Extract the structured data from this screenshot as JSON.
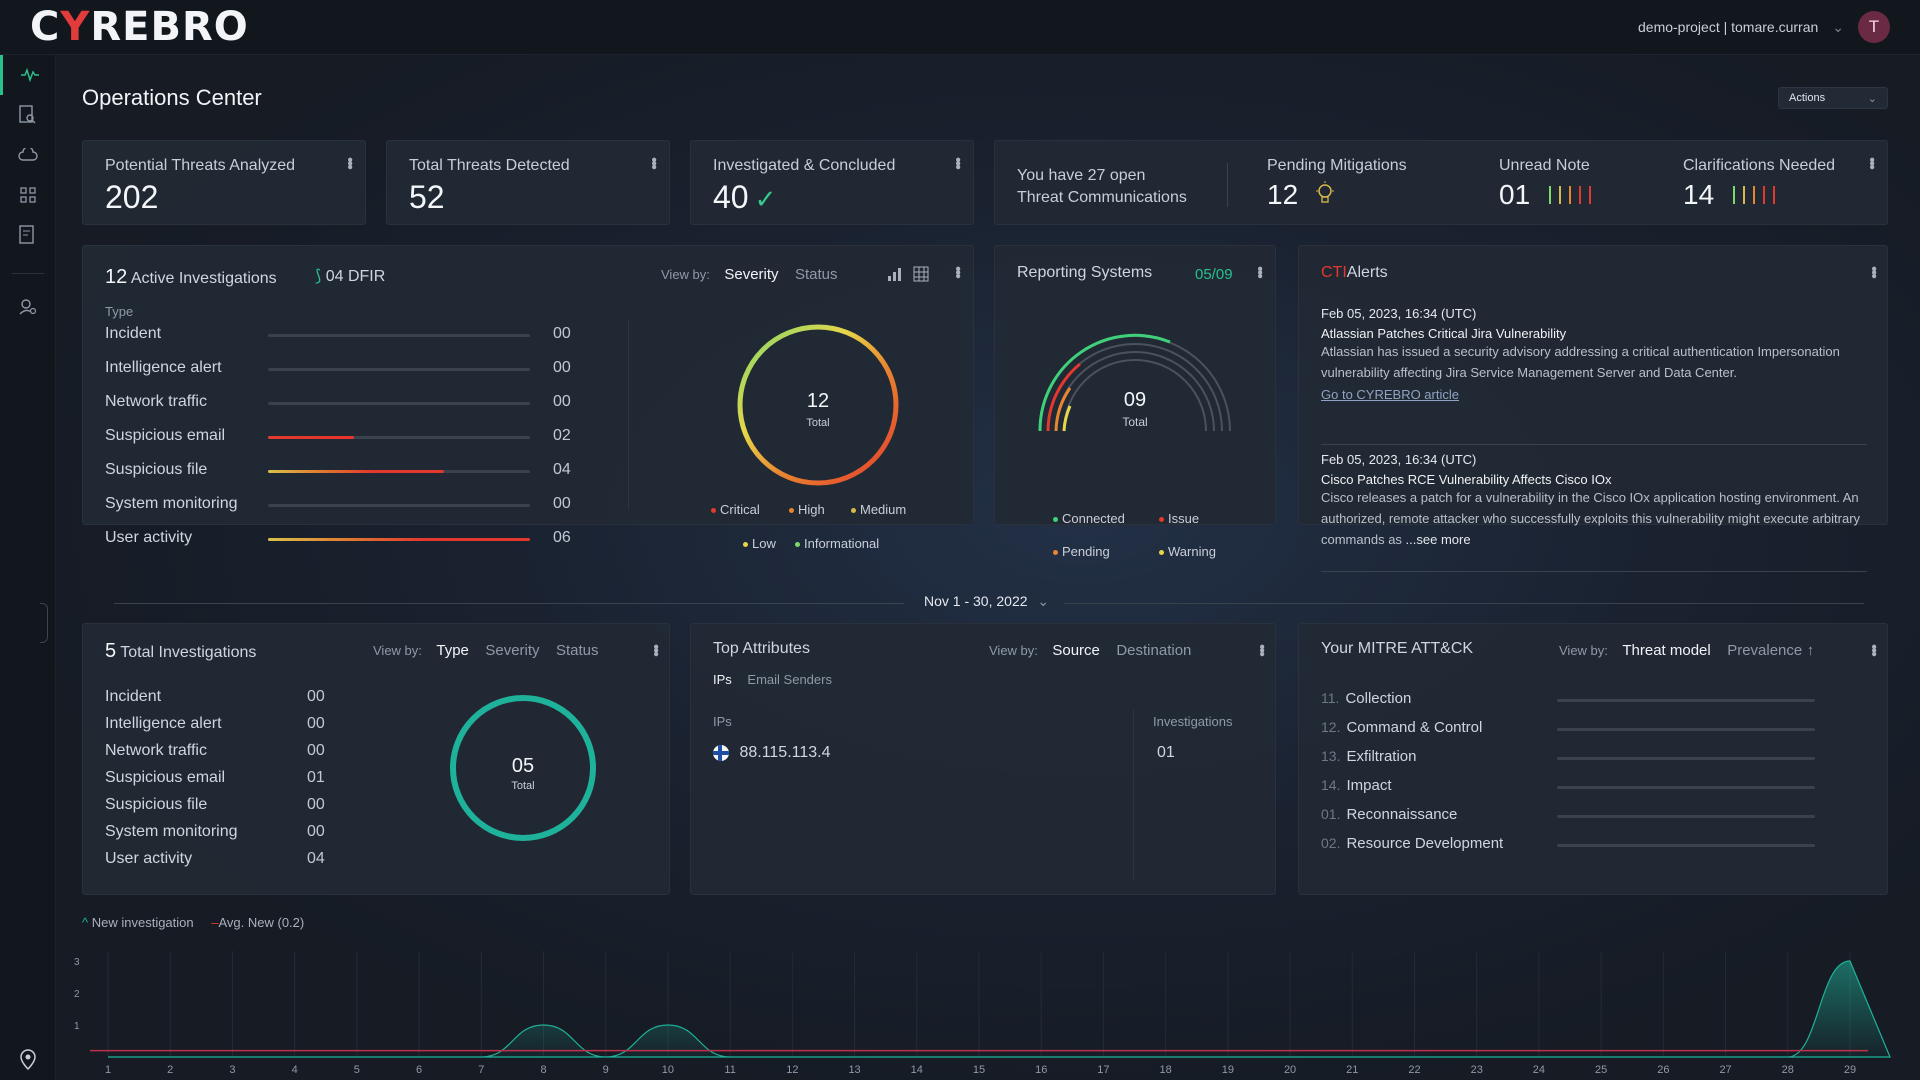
{
  "header": {
    "logo_prefix": "C",
    "logo_accent": "Y",
    "logo_suffix": "REBRO",
    "account": "demo-project | tomare.curran",
    "avatar_initial": "T"
  },
  "sidebar": {
    "items": [
      "activity-icon",
      "report-search-icon",
      "cloud-icon",
      "grid-icon",
      "file-search-icon",
      "user-search-icon",
      "location-pin-icon"
    ]
  },
  "page": {
    "title": "Operations Center",
    "actions_label": "Actions"
  },
  "stats": [
    {
      "label": "Potential Threats Analyzed",
      "value": "202"
    },
    {
      "label": "Total Threats Detected",
      "value": "52"
    },
    {
      "label": "Investigated & Concluded",
      "value": "40"
    }
  ],
  "comms": {
    "open_line1": "You have 27 open",
    "open_line2": "Threat Communications",
    "pending_label": "Pending Mitigations",
    "pending_value": "12",
    "unread_label": "Unread Note",
    "unread_value": "01",
    "clar_label": "Clarifications Needed",
    "clar_value": "14"
  },
  "active_investigations": {
    "count": "12",
    "title": "Active Investigations",
    "dfir": "04 DFIR",
    "view_by": "View by:",
    "tab_severity": "Severity",
    "tab_status": "Status",
    "type_header": "Type",
    "rows": [
      {
        "label": "Incident",
        "value": "00",
        "fill": 0
      },
      {
        "label": "Intelligence alert",
        "value": "00",
        "fill": 0
      },
      {
        "label": "Network traffic",
        "value": "00",
        "fill": 0
      },
      {
        "label": "Suspicious email",
        "value": "02",
        "fill": 0.33
      },
      {
        "label": "Suspicious file",
        "value": "04",
        "fill": 0.67
      },
      {
        "label": "System monitoring",
        "value": "00",
        "fill": 0
      },
      {
        "label": "User activity",
        "value": "06",
        "fill": 1.0
      }
    ],
    "donut_value": "12",
    "donut_label": "Total",
    "legend": [
      "Critical",
      "High",
      "Medium",
      "Low",
      "Informational"
    ],
    "legend_colors": [
      "#e3382d",
      "#e8862f",
      "#d8b84a",
      "#e6d64a",
      "#7fd86a"
    ]
  },
  "reporting": {
    "title": "Reporting Systems",
    "ratio": "05/09",
    "gauge_value": "09",
    "gauge_label": "Total",
    "legend": [
      "Connected",
      "Issue",
      "Pending",
      "Warning"
    ],
    "legend_colors": [
      "#3fd17a",
      "#e3382d",
      "#e8862f",
      "#e6d64a"
    ]
  },
  "cti": {
    "title_prefix": "CTI",
    "title_suffix": "Alerts",
    "alerts": [
      {
        "date": "Feb 05, 2023, 16:34 (UTC)",
        "title": "Atlassian Patches Critical Jira Vulnerability",
        "body": "Atlassian has issued a security advisory addressing a critical authentication Impersonation vulnerability affecting Jira Service Management Server and Data Center.",
        "link": "Go to CYREBRO article"
      },
      {
        "date": "Feb 05, 2023, 16:34 (UTC)",
        "title": "Cisco Patches RCE Vulnerability Affects Cisco IOx",
        "body": "Cisco releases a patch for a vulnerability in the Cisco IOx application hosting environment. An authorized, remote attacker who successfully exploits this vulnerability might execute arbitrary commands as",
        "more": "...see more"
      }
    ]
  },
  "date_range": "Nov 1 - 30, 2022",
  "total_investigations": {
    "count": "5",
    "title": "Total Investigations",
    "view_by": "View by:",
    "tabs": [
      "Type",
      "Severity",
      "Status"
    ],
    "rows": [
      {
        "label": "Incident",
        "value": "00"
      },
      {
        "label": "Intelligence alert",
        "value": "00"
      },
      {
        "label": "Network traffic",
        "value": "00"
      },
      {
        "label": "Suspicious email",
        "value": "01"
      },
      {
        "label": "Suspicious file",
        "value": "00"
      },
      {
        "label": "System monitoring",
        "value": "00"
      },
      {
        "label": "User activity",
        "value": "04"
      }
    ],
    "donut_value": "05",
    "donut_label": "Total"
  },
  "top_attributes": {
    "title": "Top Attributes",
    "view_by": "View by:",
    "tab_source": "Source",
    "tab_destination": "Destination",
    "sub_ips": "IPs",
    "sub_email": "Email Senders",
    "col_ips": "IPs",
    "col_inv": "Investigations",
    "ip": "88.115.113.4",
    "ip_inv": "01"
  },
  "mitre": {
    "title": "Your MITRE ATT&CK",
    "view_by": "View by:",
    "tab_threat": "Threat model",
    "tab_prevalence": "Prevalence",
    "rows": [
      {
        "idx": "11.",
        "label": "Collection"
      },
      {
        "idx": "12.",
        "label": "Command & Control"
      },
      {
        "idx": "13.",
        "label": "Exfiltration"
      },
      {
        "idx": "14.",
        "label": "Impact"
      },
      {
        "idx": "01.",
        "label": "Reconnaissance"
      },
      {
        "idx": "02.",
        "label": "Resource Development"
      }
    ]
  },
  "timeline": {
    "legend_new": "New investigation",
    "legend_avg": "Avg. New (0.2)",
    "y_ticks": [
      "3",
      "2",
      "1"
    ],
    "x_ticks": [
      "1",
      "2",
      "3",
      "4",
      "5",
      "6",
      "7",
      "8",
      "9",
      "10",
      "11",
      "12",
      "13",
      "14",
      "15",
      "16",
      "17",
      "18",
      "19",
      "20",
      "21",
      "22",
      "23",
      "24",
      "25",
      "26",
      "27",
      "28",
      "29"
    ]
  },
  "chart_data": [
    {
      "type": "area",
      "title": "",
      "xlabel": "",
      "ylabel": "",
      "x": [
        1,
        2,
        3,
        4,
        5,
        6,
        7,
        8,
        9,
        10,
        11,
        12,
        13,
        14,
        15,
        16,
        17,
        18,
        19,
        20,
        21,
        22,
        23,
        24,
        25,
        26,
        27,
        28,
        29
      ],
      "series": [
        {
          "name": "New investigation",
          "values": [
            0,
            0,
            0,
            0,
            0,
            0,
            0,
            1,
            0,
            1,
            0,
            0,
            0,
            0,
            0,
            0,
            0,
            0,
            0,
            0,
            0,
            0,
            0,
            0,
            0,
            0,
            0,
            0,
            3
          ]
        },
        {
          "name": "Avg. New (0.2)",
          "values": [
            0.2,
            0.2,
            0.2,
            0.2,
            0.2,
            0.2,
            0.2,
            0.2,
            0.2,
            0.2,
            0.2,
            0.2,
            0.2,
            0.2,
            0.2,
            0.2,
            0.2,
            0.2,
            0.2,
            0.2,
            0.2,
            0.2,
            0.2,
            0.2,
            0.2,
            0.2,
            0.2,
            0.2,
            0.2
          ]
        }
      ],
      "ylim": [
        0,
        3
      ]
    }
  ]
}
